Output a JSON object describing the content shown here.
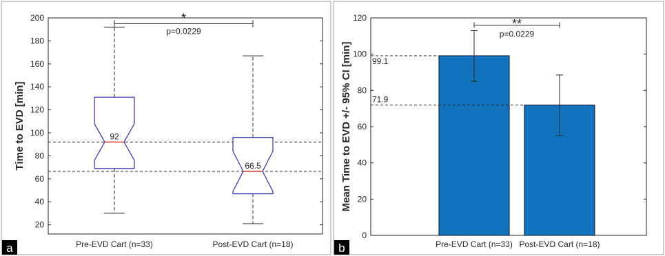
{
  "chart_data": [
    {
      "panel": "a",
      "type": "boxplot",
      "ylabel": "Time to EVD [min]",
      "ylim": [
        12,
        200
      ],
      "yticks": [
        20,
        40,
        60,
        80,
        100,
        120,
        140,
        160,
        180,
        200
      ],
      "categories": [
        "Pre-EVD Cart (n=33)",
        "Post-EVD Cart (n=18)"
      ],
      "boxes": [
        {
          "min": 30,
          "q1": 69,
          "median": 92,
          "q3": 131,
          "max": 192,
          "notch_low": 76,
          "notch_high": 108,
          "median_label": "92"
        },
        {
          "min": 21,
          "q1": 47,
          "median": 66.5,
          "q3": 96,
          "max": 167,
          "notch_low": 49,
          "notch_high": 84,
          "median_label": "66.5"
        }
      ],
      "reference_lines": [
        92,
        66.5
      ],
      "significance": {
        "star": "*",
        "p_text": "p=0.0229",
        "y": 195
      },
      "colors": {
        "box": "#3a3fb5",
        "median": "#e23b2e",
        "whisker": "#262626"
      }
    },
    {
      "panel": "b",
      "type": "bar",
      "ylabel": "Mean Time to EVD +/- 95% CI [min]",
      "ylim": [
        0,
        120
      ],
      "yticks": [
        0,
        20,
        40,
        60,
        80,
        100,
        120
      ],
      "categories": [
        "Pre-EVD Cart (n=33)",
        "Post-EVD Cart (n=18)"
      ],
      "values": [
        99.1,
        71.9
      ],
      "ci_low": [
        85,
        55
      ],
      "ci_high": [
        113,
        88.5
      ],
      "value_labels": [
        "99.1",
        "71.9"
      ],
      "significance": {
        "star": "**",
        "p_text": "p=0.0229",
        "y": 116
      },
      "colors": {
        "bar": "#1172be",
        "edge": "#1a2a45",
        "error": "#262626"
      }
    }
  ]
}
